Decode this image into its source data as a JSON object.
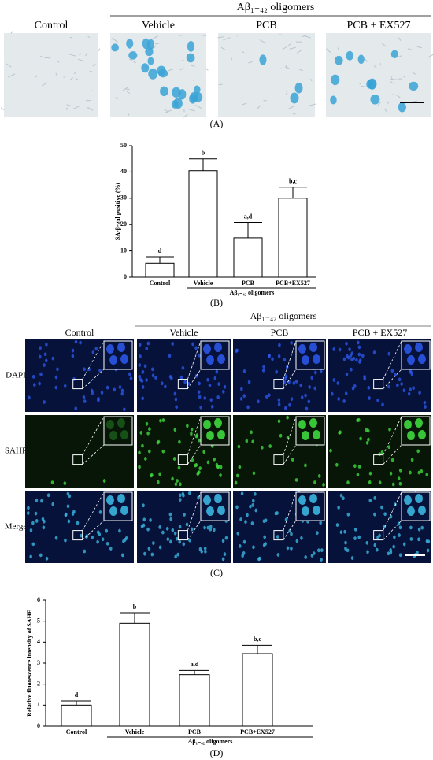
{
  "figure": {
    "panel_a": {
      "label": "(A)",
      "group_label": "Aβ₁₋₄₂ oligomers",
      "columns": [
        "Control",
        "Vehicle",
        "PCB",
        "PCB + EX527"
      ]
    },
    "panel_c": {
      "label": "(C)",
      "group_label": "Aβ₁₋₄₂ oligomers",
      "columns": [
        "Control",
        "Vehicle",
        "PCB",
        "PCB + EX527"
      ],
      "rows": [
        "DAPI",
        "SAHF",
        "Merge"
      ]
    }
  },
  "chart_data": [
    {
      "type": "bar",
      "label": "(B)",
      "ylabel": "SA-β-gal positive (%)",
      "categories": [
        "Control",
        "Vehicle",
        "PCB",
        "PCB+EX527"
      ],
      "values": [
        5.3,
        40.5,
        15,
        30
      ],
      "errors": [
        2.5,
        4.5,
        5.8,
        4.2
      ],
      "annotations": [
        "d",
        "b",
        "a,d",
        "b,c"
      ],
      "group_label": "Aβ₁₋₄₂ oligomers",
      "color": "#ffffff",
      "ylim": [
        0,
        50
      ],
      "yticks": [
        0,
        10,
        20,
        30,
        40,
        50
      ]
    },
    {
      "type": "bar",
      "label": "(D)",
      "ylabel": "Relative fluorescence intensity of SAHF",
      "categories": [
        "Control",
        "Vehicle",
        "PCB",
        "PCB+EX527"
      ],
      "values": [
        1.0,
        4.9,
        2.45,
        3.45
      ],
      "errors": [
        0.2,
        0.5,
        0.2,
        0.4
      ],
      "annotations": [
        "d",
        "b",
        "a,d",
        "b,c"
      ],
      "group_label": "Aβ₁₋₄₂ oligomers",
      "color": "#ffffff",
      "ylim": [
        0,
        6
      ],
      "yticks": [
        0,
        1,
        2,
        3,
        4,
        5,
        6
      ]
    }
  ]
}
